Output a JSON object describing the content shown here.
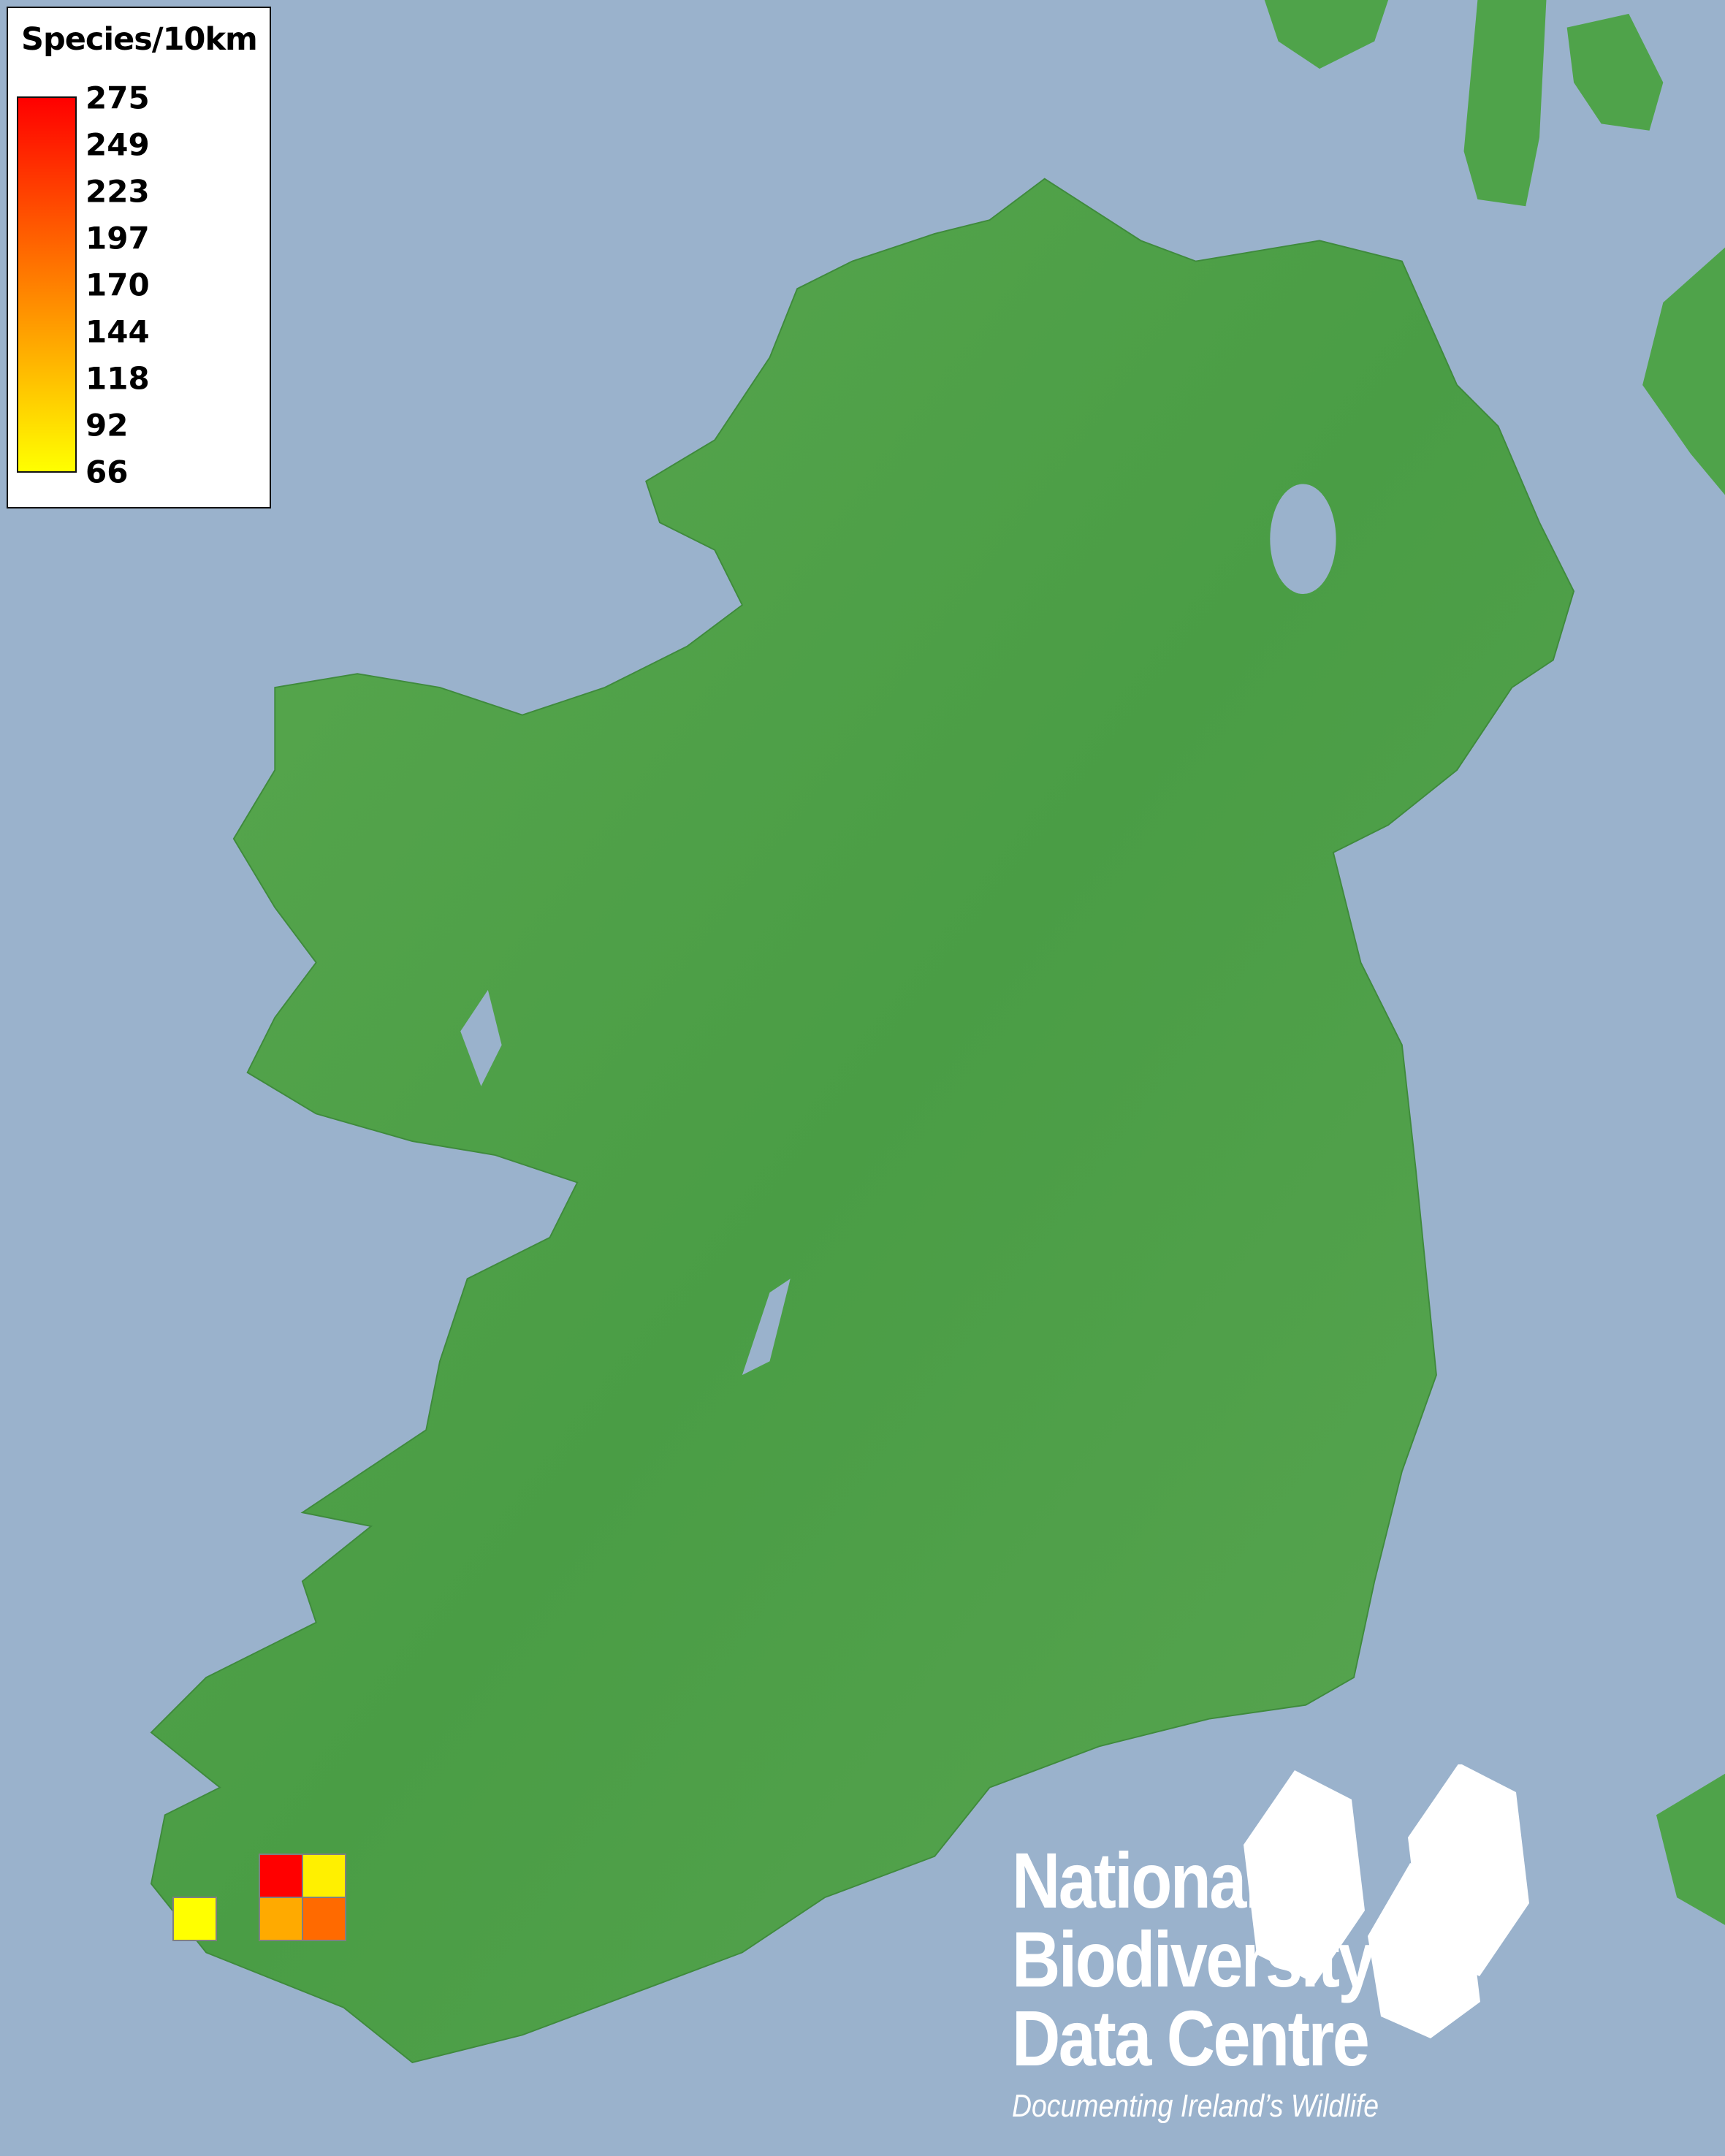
{
  "legend": {
    "title": "Species/10km",
    "ticks": [
      "275",
      "249",
      "223",
      "197",
      "170",
      "144",
      "118",
      "92",
      "66"
    ],
    "color_max": "#ff0000",
    "color_mid": "#ff8000",
    "color_min": "#ffff00"
  },
  "map": {
    "sea_color": "#9ab2cc",
    "land_color": "#4fa34a",
    "records": [
      {
        "color": "#ff0000",
        "approx_value": 275
      },
      {
        "color": "#fff000",
        "approx_value": 80
      },
      {
        "color": "#ffaa00",
        "approx_value": 150
      },
      {
        "color": "#ff6a00",
        "approx_value": 200
      },
      {
        "color": "#ffff00",
        "approx_value": 66
      }
    ]
  },
  "logo": {
    "line1": "National",
    "line2": "Biodiversity",
    "line3": "Data Centre",
    "tagline": "Documenting Ireland’s Wildlife"
  }
}
